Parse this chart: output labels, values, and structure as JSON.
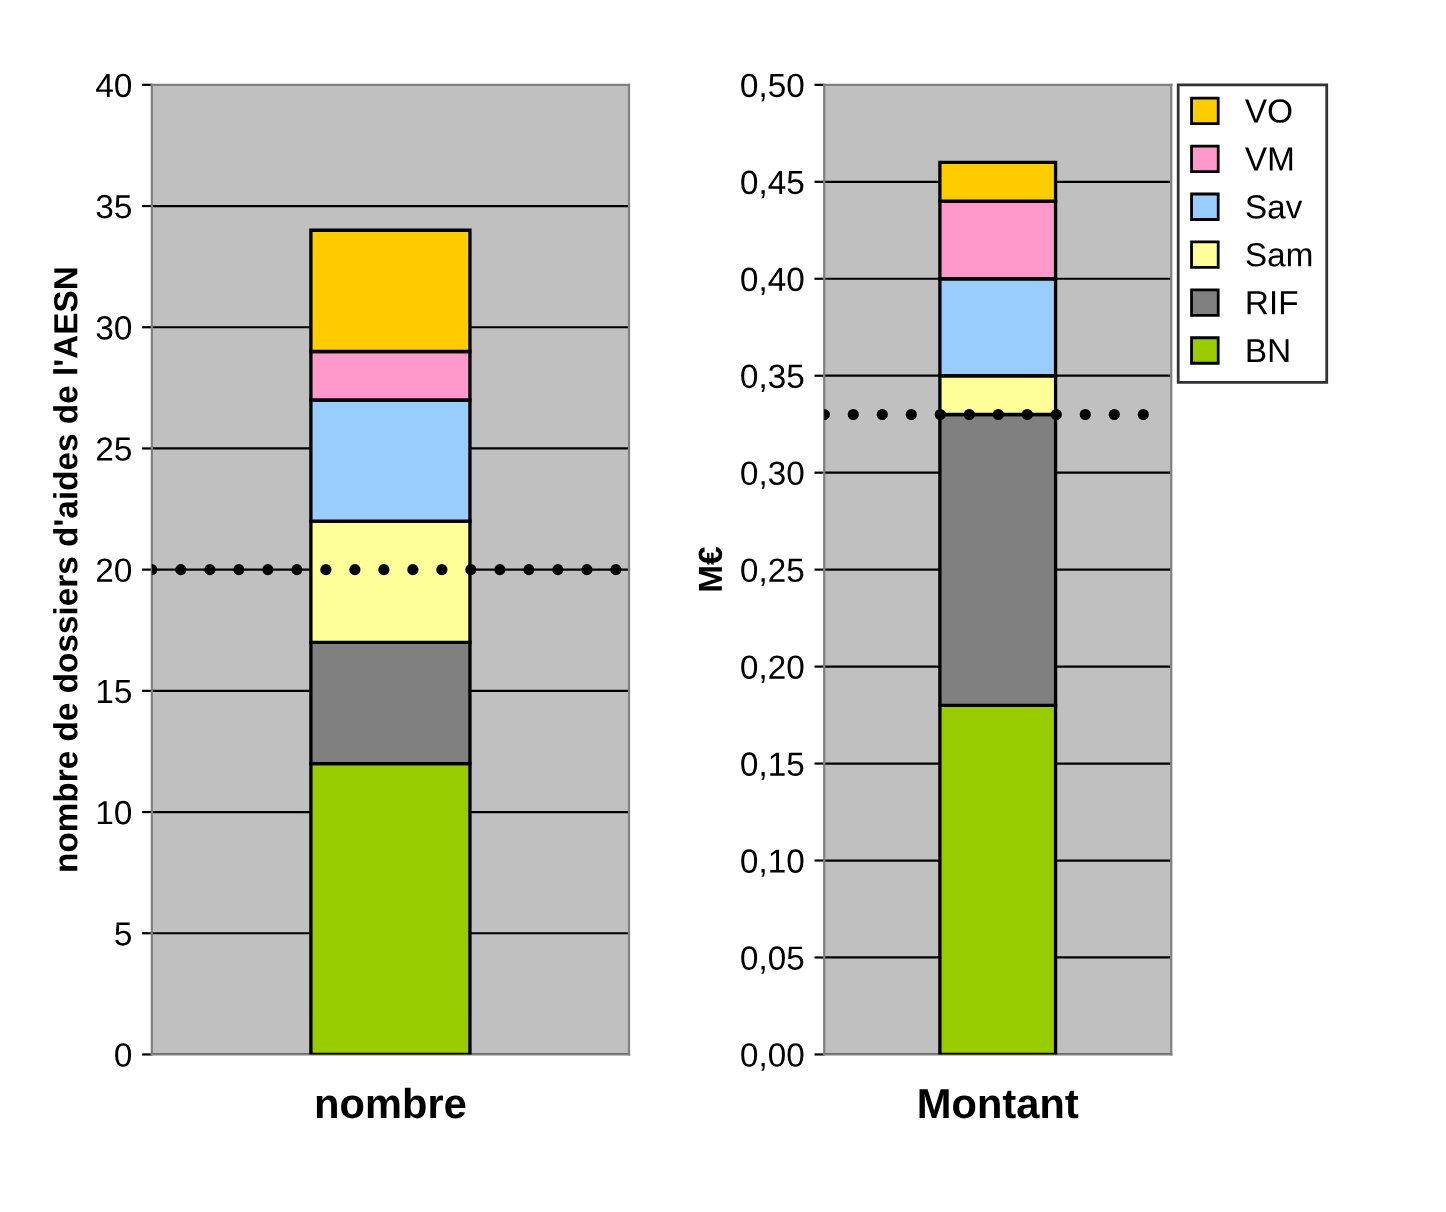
{
  "chart_data": [
    {
      "type": "bar",
      "stacked": true,
      "categories": [
        "nombre"
      ],
      "ylabel": "nombre de dossiers d'aides de l'AESN",
      "ylim": [
        0,
        40
      ],
      "yticks": [
        0,
        5,
        10,
        15,
        20,
        25,
        30,
        35,
        40
      ],
      "grid": "y",
      "legend": false,
      "series": [
        {
          "color": "#99cc00",
          "values": [
            12
          ]
        },
        {
          "color": "#808080",
          "values": [
            5
          ]
        },
        {
          "color": "#ffff99",
          "values": [
            5
          ]
        },
        {
          "color": "#99ccff",
          "values": [
            5
          ]
        },
        {
          "color": "#ff99cc",
          "values": [
            2
          ]
        },
        {
          "color": "#ffcc00",
          "values": [
            5
          ]
        }
      ],
      "ref_lines": [
        {
          "axis": "y",
          "value": 20,
          "color": "#000000",
          "line_style": "dotted"
        }
      ]
    },
    {
      "type": "bar",
      "stacked": true,
      "categories": [
        "Montant"
      ],
      "ylabel": "M€",
      "ylim": [
        0,
        0.5
      ],
      "yticks": [
        {
          "value": 0,
          "label": "0,00"
        },
        {
          "value": 0.05,
          "label": "0,05"
        },
        {
          "value": 0.1,
          "label": "0,10"
        },
        {
          "value": 0.15,
          "label": "0,15"
        },
        {
          "value": 0.2,
          "label": "0,20"
        },
        {
          "value": 0.25,
          "label": "0,25"
        },
        {
          "value": 0.3,
          "label": "0,30"
        },
        {
          "value": 0.35,
          "label": "0,35"
        },
        {
          "value": 0.4,
          "label": "0,40"
        },
        {
          "value": 0.45,
          "label": "0,45"
        },
        {
          "value": 0.5,
          "label": "0,50"
        }
      ],
      "grid": "y",
      "legend": "top right",
      "series": [
        {
          "name": "BN",
          "color": "#99cc00",
          "values": [
            0.18
          ]
        },
        {
          "name": "RIF",
          "color": "#808080",
          "values": [
            0.15
          ]
        },
        {
          "name": "Sam",
          "color": "#ffff99",
          "values": [
            0.02
          ]
        },
        {
          "name": "Sav",
          "color": "#99ccff",
          "values": [
            0.05
          ]
        },
        {
          "name": "VM",
          "color": "#ff99cc",
          "values": [
            0.04
          ]
        },
        {
          "name": "VO",
          "color": "#ffcc00",
          "values": [
            0.02
          ]
        }
      ],
      "ref_lines": [
        {
          "axis": "y",
          "value": 0.33,
          "color": "#000000",
          "line_style": "dotted"
        }
      ]
    }
  ]
}
